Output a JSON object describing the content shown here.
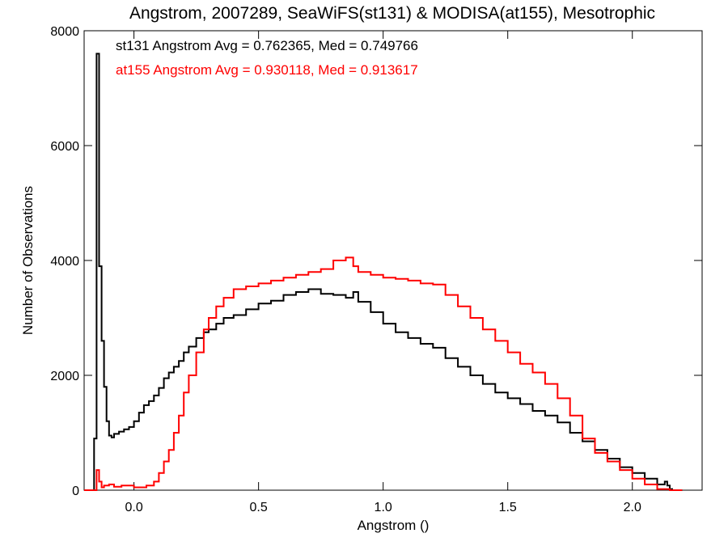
{
  "chart_data": {
    "type": "line",
    "style": "histogram-step",
    "title": "Angstrom, 2007289, SeaWiFS(st131) & MODISA(at155), Mesotrophic",
    "xlabel": "Angstrom ()",
    "ylabel": "Number of Observations",
    "xlim": [
      -0.2,
      2.28
    ],
    "ylim": [
      0,
      8000
    ],
    "x_ticks": [
      0.0,
      0.5,
      1.0,
      1.5,
      2.0
    ],
    "x_tick_labels": [
      "0.0",
      "0.5",
      "1.0",
      "1.5",
      "2.0"
    ],
    "y_ticks": [
      0,
      2000,
      4000,
      6000,
      8000
    ],
    "y_tick_labels": [
      "0",
      "2000",
      "4000",
      "6000",
      "8000"
    ],
    "grid": false,
    "legend": [
      {
        "text": "st131 Angstrom Avg = 0.762365, Med = 0.749766",
        "color": "#000000"
      },
      {
        "text": "at155 Angstrom Avg = 0.930118, Med = 0.913617",
        "color": "#ff0000"
      }
    ],
    "series": [
      {
        "color": "#000000",
        "x": [
          -0.2,
          -0.18,
          -0.16,
          -0.15,
          -0.14,
          -0.13,
          -0.12,
          -0.11,
          -0.1,
          -0.09,
          -0.08,
          -0.06,
          -0.04,
          -0.02,
          0.0,
          0.02,
          0.04,
          0.06,
          0.08,
          0.1,
          0.12,
          0.14,
          0.16,
          0.18,
          0.2,
          0.22,
          0.25,
          0.28,
          0.3,
          0.33,
          0.36,
          0.4,
          0.45,
          0.5,
          0.55,
          0.6,
          0.65,
          0.7,
          0.75,
          0.8,
          0.85,
          0.88,
          0.9,
          0.95,
          1.0,
          1.05,
          1.1,
          1.15,
          1.2,
          1.25,
          1.3,
          1.35,
          1.4,
          1.45,
          1.5,
          1.55,
          1.6,
          1.65,
          1.7,
          1.75,
          1.8,
          1.85,
          1.9,
          1.95,
          2.0,
          2.05,
          2.1,
          2.13,
          2.14,
          2.15,
          2.16,
          2.2
        ],
        "values": [
          0,
          0,
          900,
          7600,
          3900,
          2600,
          1800,
          1200,
          950,
          920,
          980,
          1020,
          1060,
          1100,
          1200,
          1350,
          1480,
          1550,
          1650,
          1780,
          1950,
          2050,
          2150,
          2250,
          2400,
          2500,
          2650,
          2750,
          2800,
          2900,
          3000,
          3050,
          3150,
          3250,
          3300,
          3400,
          3450,
          3500,
          3420,
          3400,
          3350,
          3450,
          3280,
          3100,
          2900,
          2750,
          2650,
          2550,
          2480,
          2300,
          2150,
          2000,
          1850,
          1700,
          1600,
          1500,
          1380,
          1300,
          1180,
          1000,
          850,
          700,
          550,
          400,
          300,
          200,
          100,
          150,
          80,
          20,
          0,
          0
        ]
      },
      {
        "color": "#ff0000",
        "x": [
          -0.2,
          -0.18,
          -0.16,
          -0.15,
          -0.14,
          -0.13,
          -0.12,
          -0.1,
          -0.08,
          -0.05,
          0.0,
          0.05,
          0.08,
          0.1,
          0.12,
          0.14,
          0.16,
          0.18,
          0.2,
          0.22,
          0.25,
          0.28,
          0.3,
          0.33,
          0.36,
          0.4,
          0.45,
          0.5,
          0.55,
          0.6,
          0.65,
          0.7,
          0.75,
          0.8,
          0.85,
          0.88,
          0.9,
          0.95,
          1.0,
          1.05,
          1.1,
          1.15,
          1.2,
          1.25,
          1.3,
          1.35,
          1.4,
          1.45,
          1.5,
          1.55,
          1.6,
          1.65,
          1.7,
          1.75,
          1.8,
          1.85,
          1.9,
          1.95,
          2.0,
          2.05,
          2.1,
          2.15,
          2.2
        ],
        "values": [
          0,
          0,
          0,
          350,
          150,
          50,
          80,
          100,
          60,
          80,
          50,
          80,
          150,
          300,
          500,
          700,
          1000,
          1300,
          1700,
          2000,
          2400,
          2800,
          3000,
          3200,
          3350,
          3500,
          3550,
          3600,
          3650,
          3700,
          3750,
          3800,
          3850,
          4000,
          4050,
          3900,
          3800,
          3750,
          3700,
          3680,
          3650,
          3600,
          3580,
          3400,
          3200,
          3000,
          2800,
          2600,
          2400,
          2200,
          2050,
          1850,
          1600,
          1300,
          900,
          650,
          500,
          350,
          200,
          100,
          20,
          0,
          0
        ]
      }
    ]
  }
}
